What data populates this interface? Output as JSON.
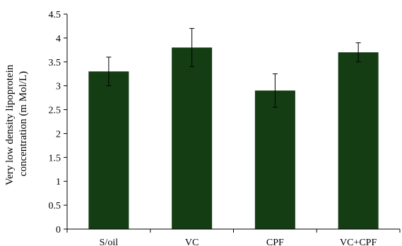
{
  "chart_data": {
    "type": "bar",
    "categories": [
      "S/oil",
      "VC",
      "CPF",
      "VC+CPF"
    ],
    "values": [
      3.3,
      3.8,
      2.9,
      3.7
    ],
    "errors": [
      0.3,
      0.4,
      0.35,
      0.2
    ],
    "ylabel_line1": "Very low density lipoprotein",
    "ylabel_line2": "concentration (m Mol/L)",
    "ylim": [
      0,
      4.5
    ],
    "yticks": [
      "0",
      "0.5",
      "1",
      "1.5",
      "2",
      "2.5",
      "3",
      "3.5",
      "4",
      "4.5"
    ],
    "ytick_values": [
      0,
      0.5,
      1,
      1.5,
      2,
      2.5,
      3,
      3.5,
      4,
      4.5
    ],
    "bar_color": "#143d14",
    "grid": false
  }
}
